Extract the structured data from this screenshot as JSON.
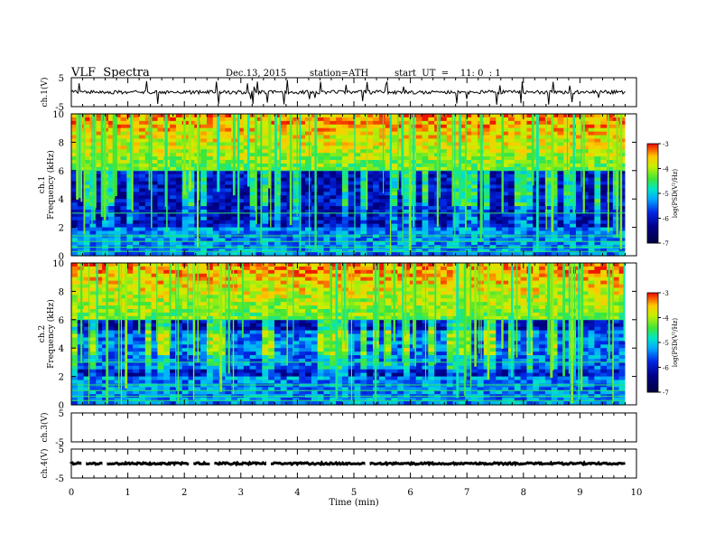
{
  "header": {
    "title": "VLF  Spectra",
    "date": "Dec.13, 2015",
    "station": "station=ATH",
    "start": "start  UT  =    11: 0  : 1"
  },
  "chart_data": [
    {
      "type": "line",
      "name": "ch1-waveform",
      "ylabel": "ch.1(V)",
      "ylim": [
        -5,
        5
      ],
      "yticks": [
        "5",
        "-5"
      ],
      "series": [
        {
          "x": [
            0,
            9.8
          ],
          "values": [
            0,
            0
          ]
        }
      ]
    },
    {
      "type": "heatmap",
      "name": "ch1-spectrogram",
      "ylabel_lines": [
        "ch.1",
        "Frequency  (kHz)"
      ],
      "ylim": [
        0,
        10
      ],
      "yticks": [
        "0",
        "2",
        "4",
        "6",
        "8",
        "10"
      ],
      "colorbar": {
        "label": "log(PSD(V²/Hz)",
        "range": [
          -7,
          -3
        ],
        "ticks": [
          "-3",
          "-4",
          "-5",
          "-6",
          "-7"
        ]
      }
    },
    {
      "type": "heatmap",
      "name": "ch2-spectrogram",
      "ylabel_lines": [
        "ch.2",
        "Frequency  (kHz)"
      ],
      "ylim": [
        0,
        10
      ],
      "yticks": [
        "0",
        "2",
        "4",
        "6",
        "8",
        "10"
      ],
      "colorbar": {
        "label": "log(PSD(V²/Hz)",
        "range": [
          -7,
          -3
        ],
        "ticks": [
          "-3",
          "-4",
          "-5",
          "-6",
          "-7"
        ]
      }
    },
    {
      "type": "line",
      "name": "ch3-waveform",
      "ylabel": "ch.3(V)",
      "ylim": [
        -5,
        5
      ],
      "yticks": [
        "5",
        "-5"
      ],
      "series": []
    },
    {
      "type": "line",
      "name": "ch4-waveform",
      "ylabel": "ch.4(V)",
      "ylim": [
        -5,
        5
      ],
      "yticks": [
        "5",
        "-5"
      ],
      "series": [
        {
          "x": [
            0,
            9.8
          ],
          "values": [
            0,
            0
          ]
        }
      ]
    }
  ],
  "xaxis": {
    "label": "Time  (min)",
    "range": [
      0,
      10
    ],
    "ticks": [
      "0",
      "1",
      "2",
      "3",
      "4",
      "5",
      "6",
      "7",
      "8",
      "9",
      "10"
    ]
  },
  "colors": {
    "axis": "#000000",
    "spec_low": "#00007a",
    "spec_high": "#ff0000"
  }
}
